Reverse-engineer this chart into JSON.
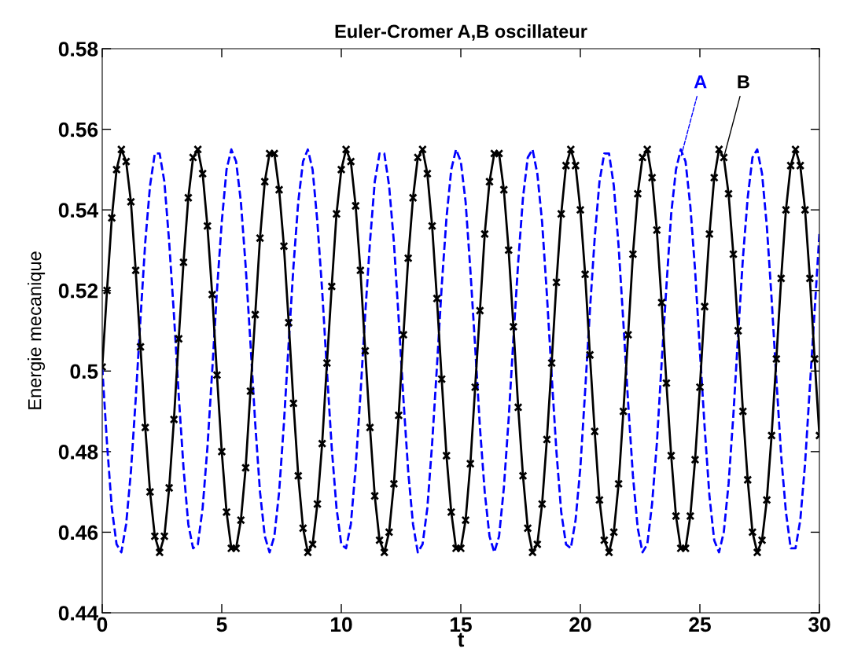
{
  "chart_data": {
    "type": "line",
    "title": "Euler-Cromer A,B oscillateur",
    "xlabel": "t",
    "ylabel": "Energie mecanique",
    "x": [
      0,
      0.2,
      0.4,
      0.6,
      0.8,
      1,
      1.2,
      1.4,
      1.6,
      1.8,
      2,
      2.2,
      2.4,
      2.6,
      2.8,
      3,
      3.2,
      3.4,
      3.6,
      3.8,
      4,
      4.2,
      4.4,
      4.6,
      4.8,
      5,
      5.2,
      5.4,
      5.6,
      5.8,
      6,
      6.2,
      6.4,
      6.6,
      6.8,
      7,
      7.2,
      7.4,
      7.6,
      7.8,
      8,
      8.2,
      8.4,
      8.6,
      8.8,
      9,
      9.2,
      9.4,
      9.6,
      9.8,
      10,
      10.2,
      10.4,
      10.6,
      10.8,
      11,
      11.2,
      11.4,
      11.6,
      11.8,
      12,
      12.2,
      12.4,
      12.6,
      12.8,
      13,
      13.2,
      13.4,
      13.6,
      13.8,
      14,
      14.2,
      14.4,
      14.6,
      14.8,
      15,
      15.2,
      15.4,
      15.6,
      15.8,
      16,
      16.2,
      16.4,
      16.6,
      16.8,
      17,
      17.2,
      17.4,
      17.6,
      17.8,
      18,
      18.2,
      18.4,
      18.6,
      18.8,
      19,
      19.2,
      19.4,
      19.6,
      19.8,
      20,
      20.2,
      20.4,
      20.6,
      20.8,
      21,
      21.2,
      21.4,
      21.6,
      21.8,
      22,
      22.2,
      22.4,
      22.6,
      22.8,
      23,
      23.2,
      23.4,
      23.6,
      23.8,
      24,
      24.2,
      24.4,
      24.6,
      24.8,
      25,
      25.2,
      25.4,
      25.6,
      25.8,
      26,
      26.2,
      26.4,
      26.6,
      26.8,
      27,
      27.2,
      27.4,
      27.6,
      27.8,
      28,
      28.2,
      28.4,
      28.6,
      28.8,
      29,
      29.2,
      29.4,
      29.6,
      29.8,
      30
    ],
    "series": [
      {
        "color": "#0000ff",
        "line_style": "dashed",
        "marker": "none",
        "values": [
          0.501,
          0.482,
          0.466,
          0.457,
          0.455,
          0.462,
          0.475,
          0.493,
          0.513,
          0.532,
          0.546,
          0.554,
          0.554,
          0.547,
          0.532,
          0.514,
          0.494,
          0.476,
          0.462,
          0.456,
          0.457,
          0.466,
          0.481,
          0.5,
          0.52,
          0.537,
          0.55,
          0.555,
          0.552,
          0.542,
          0.526,
          0.507,
          0.487,
          0.47,
          0.459,
          0.455,
          0.459,
          0.47,
          0.487,
          0.507,
          0.526,
          0.542,
          0.552,
          0.555,
          0.55,
          0.537,
          0.52,
          0.5,
          0.481,
          0.466,
          0.457,
          0.456,
          0.462,
          0.476,
          0.494,
          0.514,
          0.532,
          0.547,
          0.554,
          0.554,
          0.546,
          0.532,
          0.513,
          0.493,
          0.475,
          0.462,
          0.455,
          0.457,
          0.466,
          0.482,
          0.501,
          0.521,
          0.538,
          0.55,
          0.555,
          0.552,
          0.542,
          0.525,
          0.506,
          0.486,
          0.47,
          0.459,
          0.455,
          0.459,
          0.471,
          0.488,
          0.508,
          0.527,
          0.543,
          0.553,
          0.555,
          0.549,
          0.537,
          0.519,
          0.499,
          0.48,
          0.465,
          0.457,
          0.456,
          0.463,
          0.476,
          0.495,
          0.515,
          0.533,
          0.547,
          0.554,
          0.554,
          0.546,
          0.531,
          0.512,
          0.492,
          0.474,
          0.461,
          0.455,
          0.457,
          0.467,
          0.482,
          0.502,
          0.521,
          0.539,
          0.55,
          0.555,
          0.552,
          0.541,
          0.525,
          0.505,
          0.486,
          0.469,
          0.458,
          0.455,
          0.46,
          0.472,
          0.489,
          0.509,
          0.528,
          0.543,
          0.553,
          0.555,
          0.549,
          0.536,
          0.518,
          0.498,
          0.479,
          0.465,
          0.456,
          0.456,
          0.463,
          0.477,
          0.496,
          0.515,
          0.534
        ]
      },
      {
        "color": "#000000",
        "line_style": "solid",
        "marker": "cross",
        "values": [
          0.501,
          0.52,
          0.538,
          0.55,
          0.555,
          0.552,
          0.542,
          0.525,
          0.506,
          0.486,
          0.47,
          0.459,
          0.455,
          0.459,
          0.471,
          0.488,
          0.508,
          0.527,
          0.543,
          0.553,
          0.555,
          0.549,
          0.536,
          0.519,
          0.499,
          0.48,
          0.465,
          0.456,
          0.456,
          0.463,
          0.476,
          0.495,
          0.514,
          0.533,
          0.547,
          0.554,
          0.554,
          0.545,
          0.531,
          0.512,
          0.492,
          0.474,
          0.461,
          0.455,
          0.457,
          0.467,
          0.482,
          0.502,
          0.521,
          0.539,
          0.55,
          0.555,
          0.552,
          0.541,
          0.525,
          0.505,
          0.486,
          0.469,
          0.458,
          0.455,
          0.46,
          0.472,
          0.489,
          0.509,
          0.528,
          0.543,
          0.553,
          0.555,
          0.549,
          0.536,
          0.518,
          0.498,
          0.479,
          0.465,
          0.456,
          0.456,
          0.463,
          0.477,
          0.496,
          0.515,
          0.534,
          0.547,
          0.554,
          0.554,
          0.545,
          0.53,
          0.511,
          0.491,
          0.474,
          0.461,
          0.455,
          0.457,
          0.467,
          0.483,
          0.502,
          0.522,
          0.539,
          0.551,
          0.555,
          0.551,
          0.54,
          0.524,
          0.504,
          0.485,
          0.468,
          0.458,
          0.455,
          0.46,
          0.472,
          0.49,
          0.509,
          0.529,
          0.544,
          0.553,
          0.555,
          0.548,
          0.535,
          0.517,
          0.497,
          0.479,
          0.464,
          0.456,
          0.456,
          0.464,
          0.478,
          0.496,
          0.516,
          0.534,
          0.548,
          0.555,
          0.553,
          0.544,
          0.529,
          0.51,
          0.49,
          0.473,
          0.46,
          0.455,
          0.458,
          0.468,
          0.484,
          0.503,
          0.523,
          0.54,
          0.551,
          0.555,
          0.551,
          0.54,
          0.523,
          0.503,
          0.484
        ]
      }
    ],
    "annotations": [
      {
        "text": "A",
        "x": 24.2,
        "y": 0.553
      },
      {
        "text": "B",
        "x": 26.0,
        "y": 0.553
      }
    ],
    "xlim": [
      0,
      30
    ],
    "xticks": [
      0,
      5,
      10,
      15,
      20,
      25,
      30
    ],
    "ylim": [
      0.44,
      0.58
    ],
    "yticks": [
      0.44,
      0.46,
      0.48,
      0.5,
      0.52,
      0.54,
      0.56,
      0.58
    ],
    "grid": false,
    "legend": false
  }
}
